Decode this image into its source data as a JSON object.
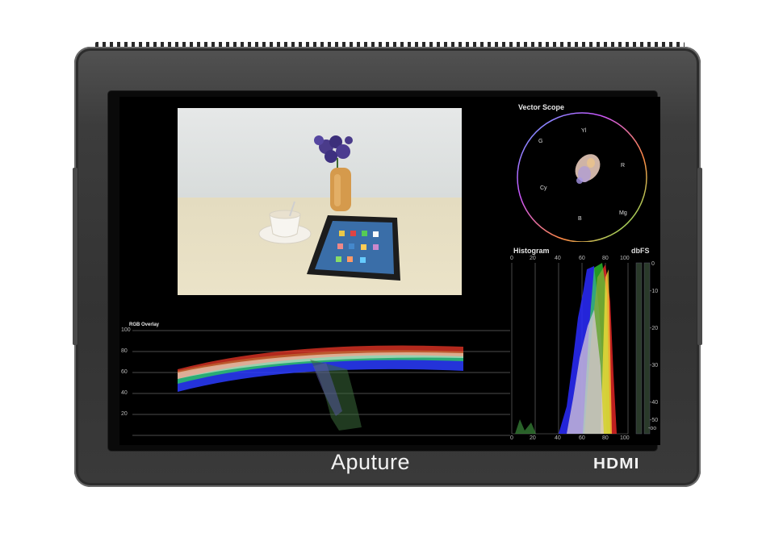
{
  "brand": {
    "name": "Aputure",
    "port_label": "HDMI"
  },
  "vector_scope": {
    "title": "Vector Scope",
    "targets": [
      "Yl",
      "R",
      "Mg",
      "B",
      "Cy",
      "G"
    ]
  },
  "histogram": {
    "title": "Histogram",
    "x_ticks": [
      "0",
      "20",
      "40",
      "60",
      "80",
      "100"
    ],
    "meter_label": "dbFS",
    "meter_ticks": [
      "0",
      "-10",
      "-20",
      "-30",
      "-40",
      "-50",
      "-oo"
    ]
  },
  "waveform": {
    "title": "RGB Overlay",
    "y_ticks": [
      "100",
      "80",
      "60",
      "40",
      "20"
    ]
  }
}
